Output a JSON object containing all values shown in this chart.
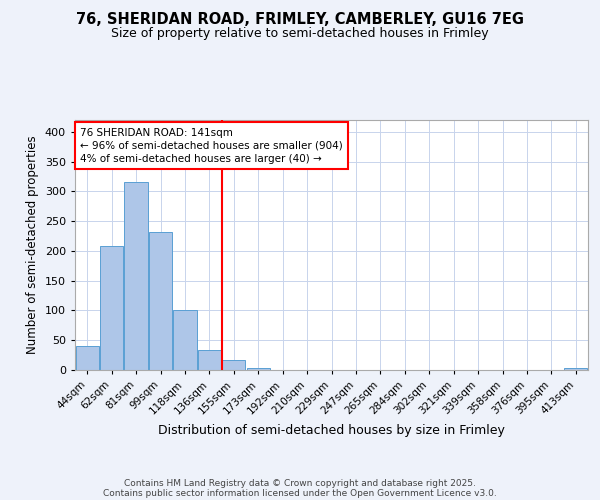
{
  "title_line1": "76, SHERIDAN ROAD, FRIMLEY, CAMBERLEY, GU16 7EG",
  "title_line2": "Size of property relative to semi-detached houses in Frimley",
  "xlabel": "Distribution of semi-detached houses by size in Frimley",
  "ylabel": "Number of semi-detached properties",
  "footnote1": "Contains HM Land Registry data © Crown copyright and database right 2025.",
  "footnote2": "Contains public sector information licensed under the Open Government Licence v3.0.",
  "bin_labels": [
    "44sqm",
    "62sqm",
    "81sqm",
    "99sqm",
    "118sqm",
    "136sqm",
    "155sqm",
    "173sqm",
    "192sqm",
    "210sqm",
    "229sqm",
    "247sqm",
    "265sqm",
    "284sqm",
    "302sqm",
    "321sqm",
    "339sqm",
    "358sqm",
    "376sqm",
    "395sqm",
    "413sqm"
  ],
  "bin_values": [
    40,
    208,
    315,
    232,
    100,
    33,
    17,
    4,
    0,
    0,
    0,
    0,
    0,
    0,
    0,
    0,
    0,
    0,
    0,
    0,
    3
  ],
  "bar_color": "#aec6e8",
  "bar_edge_color": "#5a9fd4",
  "property_line_x": 5.5,
  "property_line_color": "red",
  "annotation_text": "76 SHERIDAN ROAD: 141sqm\n← 96% of semi-detached houses are smaller (904)\n4% of semi-detached houses are larger (40) →",
  "annotation_box_color": "white",
  "annotation_box_edge": "red",
  "ylim": [
    0,
    420
  ],
  "yticks": [
    0,
    50,
    100,
    150,
    200,
    250,
    300,
    350,
    400
  ],
  "background_color": "#eef2fa",
  "plot_bg_color": "white",
  "grid_color": "#c8d4ec"
}
